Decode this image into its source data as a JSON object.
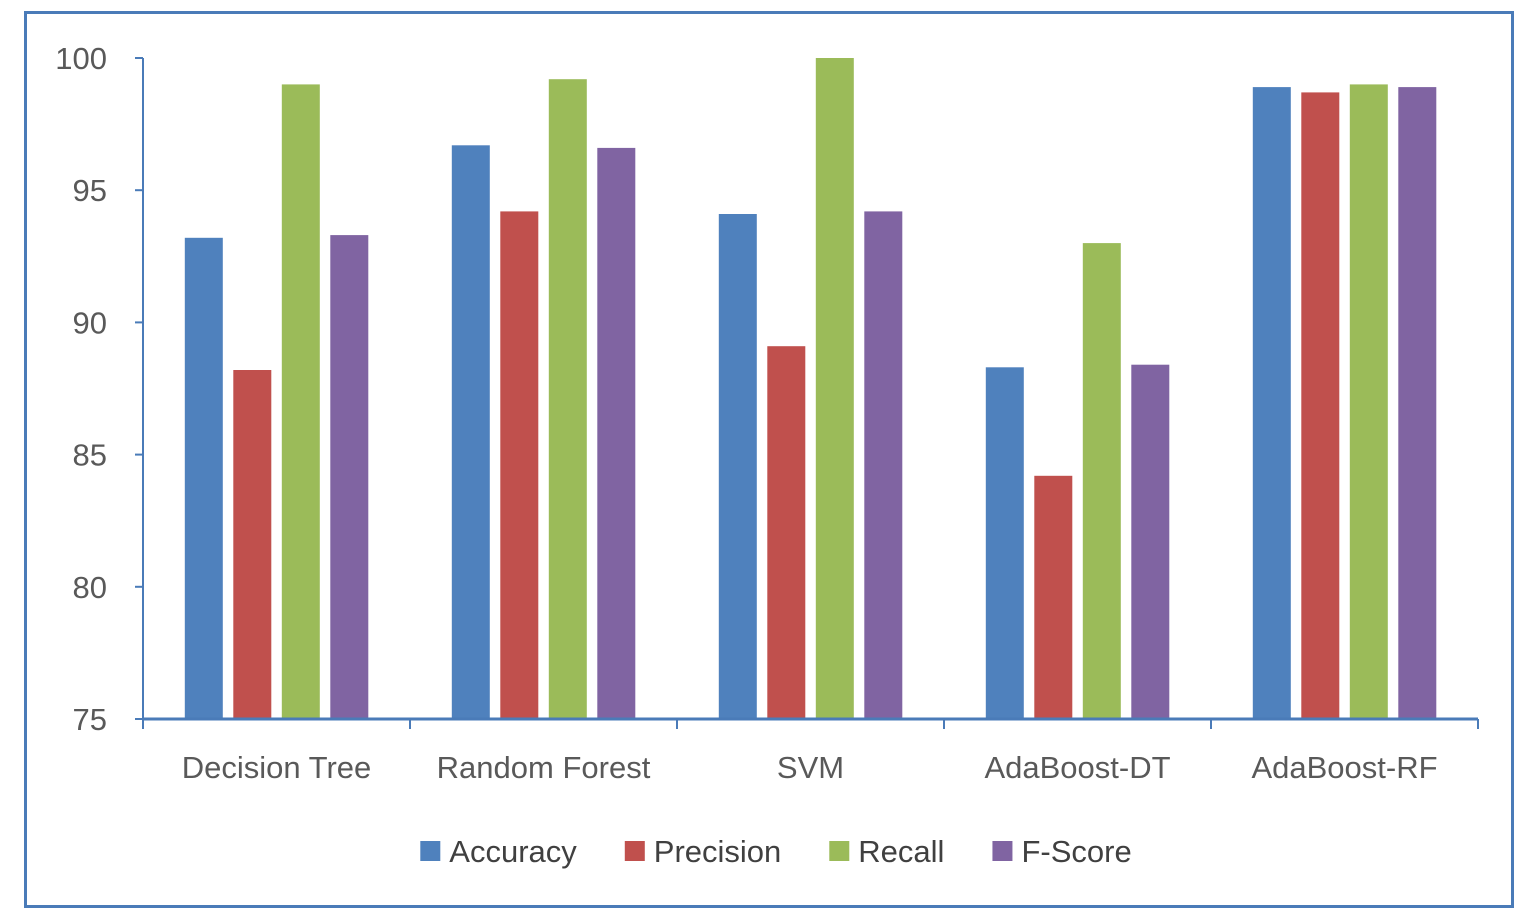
{
  "chart_data": {
    "type": "bar",
    "title": "",
    "xlabel": "",
    "ylabel": "",
    "categories": [
      "Decision Tree",
      "Random Forest",
      "SVM",
      "AdaBoost-DT",
      "AdaBoost-RF"
    ],
    "series": [
      {
        "name": "Accuracy",
        "color": "#4f81bd",
        "values": [
          93.2,
          96.7,
          94.1,
          88.3,
          98.9
        ]
      },
      {
        "name": "Precision",
        "color": "#c0504d",
        "values": [
          88.2,
          94.2,
          89.1,
          84.2,
          98.7
        ]
      },
      {
        "name": "Recall",
        "color": "#9bbb59",
        "values": [
          99.0,
          99.2,
          100.0,
          93.0,
          99.0
        ]
      },
      {
        "name": "F-Score",
        "color": "#8064a2",
        "values": [
          93.3,
          96.6,
          94.2,
          88.4,
          98.9
        ]
      }
    ],
    "yticks": [
      75,
      80,
      85,
      90,
      95,
      100
    ],
    "ylim": [
      75,
      100
    ],
    "grid": false,
    "legend_position": "bottom",
    "axis_color": "#4a7bb8",
    "frame_color": "#4a7bb8"
  }
}
